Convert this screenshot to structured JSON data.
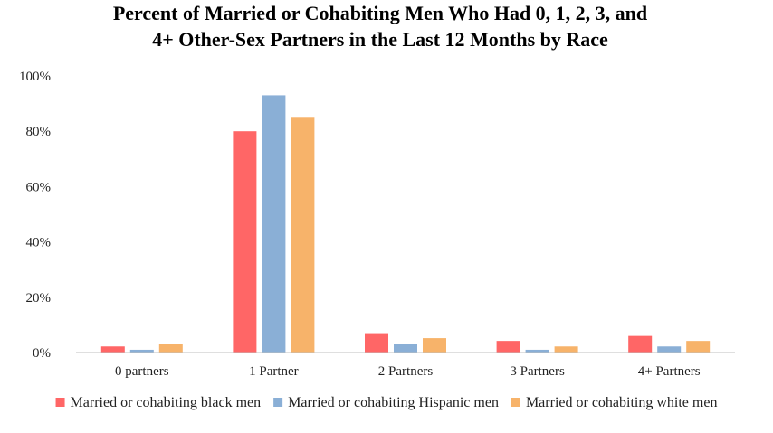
{
  "chart_data": {
    "type": "bar",
    "title_lines": [
      "Percent of Married or Cohabiting Men Who Had 0, 1, 2, 3, and",
      "4+ Other-Sex Partners in the Last 12 Months by Race"
    ],
    "categories": [
      "0 partners",
      "1 Partner",
      "2 Partners",
      "3 Partners",
      "4+ Partners"
    ],
    "series": [
      {
        "name": "Married or cohabiting black men",
        "color": "#ff6666",
        "values": [
          2.2,
          80,
          7,
          4.2,
          6
        ]
      },
      {
        "name": "Married or cohabiting Hispanic men",
        "color": "#8aafd6",
        "values": [
          1,
          93,
          3.2,
          1,
          2.2
        ]
      },
      {
        "name": "Married or cohabiting white men",
        "color": "#f7b36a",
        "values": [
          3.2,
          85.2,
          5.2,
          2.2,
          4.2
        ]
      }
    ],
    "yticks": [
      "0%",
      "20%",
      "40%",
      "60%",
      "80%",
      "100%"
    ],
    "ylim": [
      0,
      100
    ],
    "grid": false,
    "legend_position": "bottom"
  }
}
